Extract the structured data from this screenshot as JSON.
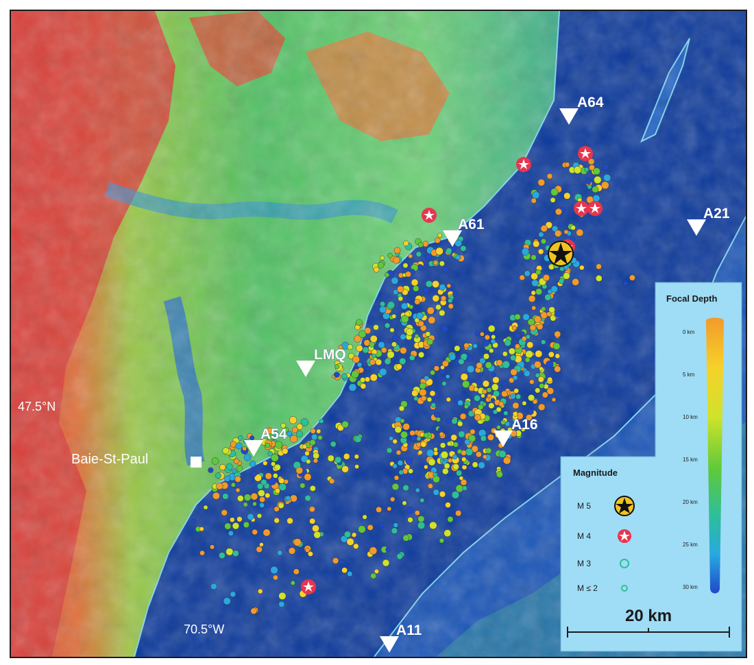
{
  "map": {
    "stations": [
      {
        "name": "A64",
        "label": "A64"
      },
      {
        "name": "A61",
        "label": "A61"
      },
      {
        "name": "A21",
        "label": "A21"
      },
      {
        "name": "LMQ",
        "label": "LMQ"
      },
      {
        "name": "A54",
        "label": "A54"
      },
      {
        "name": "A16",
        "label": "A16"
      },
      {
        "name": "A11",
        "label": "A11"
      }
    ],
    "place": {
      "label": "Baie-St-Paul"
    },
    "latitude_label": "47.5°N",
    "longitude_label": "70.5°W"
  },
  "legend": {
    "magnitude": {
      "title": "Magnitude",
      "items": [
        {
          "label": "M 5",
          "symbol": "black-star"
        },
        {
          "label": "M 4",
          "symbol": "white-star-red"
        },
        {
          "label": "M 3",
          "symbol": "circle"
        },
        {
          "label": "M ≤ 2",
          "symbol": "small-circle"
        }
      ]
    },
    "focal_depth": {
      "title": "Focal Depth",
      "ticks": [
        "0 km",
        "5 km",
        "10 km",
        "15 km",
        "20 km",
        "25 km",
        "30 km"
      ],
      "colors": [
        "#f39a2a",
        "#f6d12a",
        "#cfe32a",
        "#5ec93a",
        "#2dbf9a",
        "#28a8e0",
        "#1f49c8"
      ]
    },
    "scale": {
      "label": "20 km"
    }
  },
  "colors": {
    "deep_water": "#0d3a9c",
    "shore_cyan": "#7fd7f2",
    "legend_bg": "#9fdcf6",
    "star_red": "#e8354e",
    "star_black": "#111111",
    "station_fill": "#ffffff"
  }
}
